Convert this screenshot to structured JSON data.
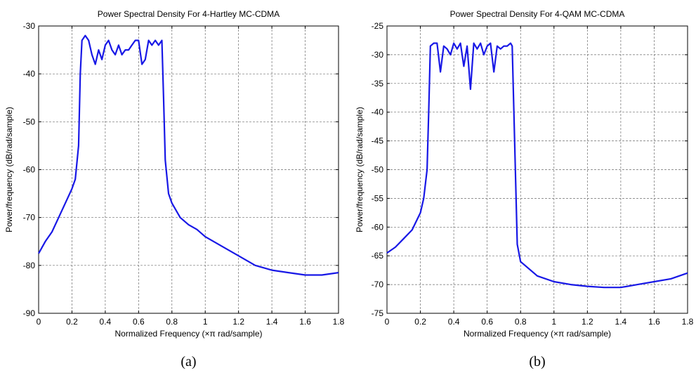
{
  "colors": {
    "series": "#1818e6",
    "grid": "#6e6e6e",
    "axis": "#000000"
  },
  "chart_data": [
    {
      "type": "line",
      "panel_label": "(a)",
      "title": "Power Spectral Density For 4-Hartley MC-CDMA",
      "xlabel": "Normalized Frequency  (×π rad/sample)",
      "ylabel": "Power/frequency (dB/rad/sample)",
      "xlim": [
        0,
        1.8
      ],
      "ylim": [
        -90,
        -30
      ],
      "xticks": [
        0,
        0.2,
        0.4,
        0.6,
        0.8,
        1,
        1.2,
        1.4,
        1.6,
        1.8
      ],
      "xtick_labels": [
        "0",
        "0.2",
        "0.4",
        "0.6",
        "0.8",
        "1",
        "1.2",
        "1.4",
        "1.6",
        "1.8"
      ],
      "yticks": [
        -30,
        -40,
        -50,
        -60,
        -70,
        -80,
        -90
      ],
      "ytick_labels": [
        "-30",
        "-40",
        "-50",
        "-60",
        "-70",
        "-80",
        "-90"
      ],
      "grid": true,
      "series": [
        {
          "x": [
            0,
            0.04,
            0.08,
            0.12,
            0.16,
            0.2,
            0.22,
            0.24,
            0.25,
            0.26,
            0.28,
            0.3,
            0.32,
            0.34,
            0.36,
            0.38,
            0.4,
            0.42,
            0.44,
            0.46,
            0.48,
            0.5,
            0.52,
            0.54,
            0.56,
            0.58,
            0.6,
            0.62,
            0.64,
            0.66,
            0.68,
            0.7,
            0.72,
            0.74,
            0.75,
            0.76,
            0.78,
            0.8,
            0.85,
            0.9,
            0.95,
            1.0,
            1.1,
            1.2,
            1.3,
            1.4,
            1.5,
            1.6,
            1.7,
            1.8
          ],
          "y": [
            -77.5,
            -75,
            -73,
            -70,
            -67,
            -64,
            -62,
            -55,
            -40,
            -33,
            -32,
            -33,
            -36,
            -38,
            -35,
            -37,
            -34,
            -33,
            -35,
            -36,
            -34,
            -36,
            -35,
            -35,
            -34,
            -33,
            -33,
            -38,
            -37,
            -33,
            -34,
            -33,
            -34,
            -33,
            -45,
            -58,
            -65,
            -67,
            -70,
            -71.5,
            -72.5,
            -74,
            -76,
            -78,
            -80,
            -81,
            -81.5,
            -82,
            -82,
            -81.5
          ]
        }
      ]
    },
    {
      "type": "line",
      "panel_label": "(b)",
      "title": "Power Spectral Density For 4-QAM  MC-CDMA",
      "xlabel": "Normalized Frequency  (×π rad/sample)",
      "ylabel": "Power/frequency (dB/rad/sample)",
      "xlim": [
        0,
        1.8
      ],
      "ylim": [
        -75,
        -25
      ],
      "xticks": [
        0,
        0.2,
        0.4,
        0.6,
        0.8,
        1,
        1.2,
        1.4,
        1.6,
        1.8
      ],
      "xtick_labels": [
        "0",
        "0.2",
        "0.4",
        "0.6",
        "0.8",
        "1",
        "1.2",
        "1.4",
        "1.6",
        "1.8"
      ],
      "yticks": [
        -25,
        -30,
        -35,
        -40,
        -45,
        -50,
        -55,
        -60,
        -65,
        -70,
        -75
      ],
      "ytick_labels": [
        "-25",
        "-30",
        "-35",
        "-40",
        "-45",
        "-50",
        "-55",
        "-60",
        "-65",
        "-70",
        "-75"
      ],
      "grid": true,
      "series": [
        {
          "x": [
            0,
            0.05,
            0.1,
            0.15,
            0.2,
            0.22,
            0.24,
            0.25,
            0.26,
            0.28,
            0.3,
            0.32,
            0.34,
            0.36,
            0.38,
            0.4,
            0.42,
            0.44,
            0.46,
            0.48,
            0.5,
            0.52,
            0.54,
            0.56,
            0.58,
            0.6,
            0.62,
            0.64,
            0.66,
            0.68,
            0.7,
            0.72,
            0.74,
            0.75,
            0.76,
            0.78,
            0.8,
            0.9,
            1.0,
            1.1,
            1.2,
            1.3,
            1.4,
            1.5,
            1.6,
            1.7,
            1.8
          ],
          "y": [
            -64.5,
            -63.5,
            -62,
            -60.5,
            -57.5,
            -55,
            -50,
            -40,
            -28.5,
            -28,
            -28,
            -33,
            -28.5,
            -29,
            -30,
            -28,
            -29,
            -28,
            -32,
            -28.5,
            -36,
            -28,
            -29,
            -28,
            -30,
            -28.5,
            -28,
            -33,
            -28.5,
            -29,
            -28.5,
            -28.5,
            -28,
            -28.5,
            -40,
            -63,
            -66,
            -68.5,
            -69.5,
            -70,
            -70.3,
            -70.5,
            -70.5,
            -70,
            -69.5,
            -69,
            -68
          ]
        }
      ]
    }
  ]
}
